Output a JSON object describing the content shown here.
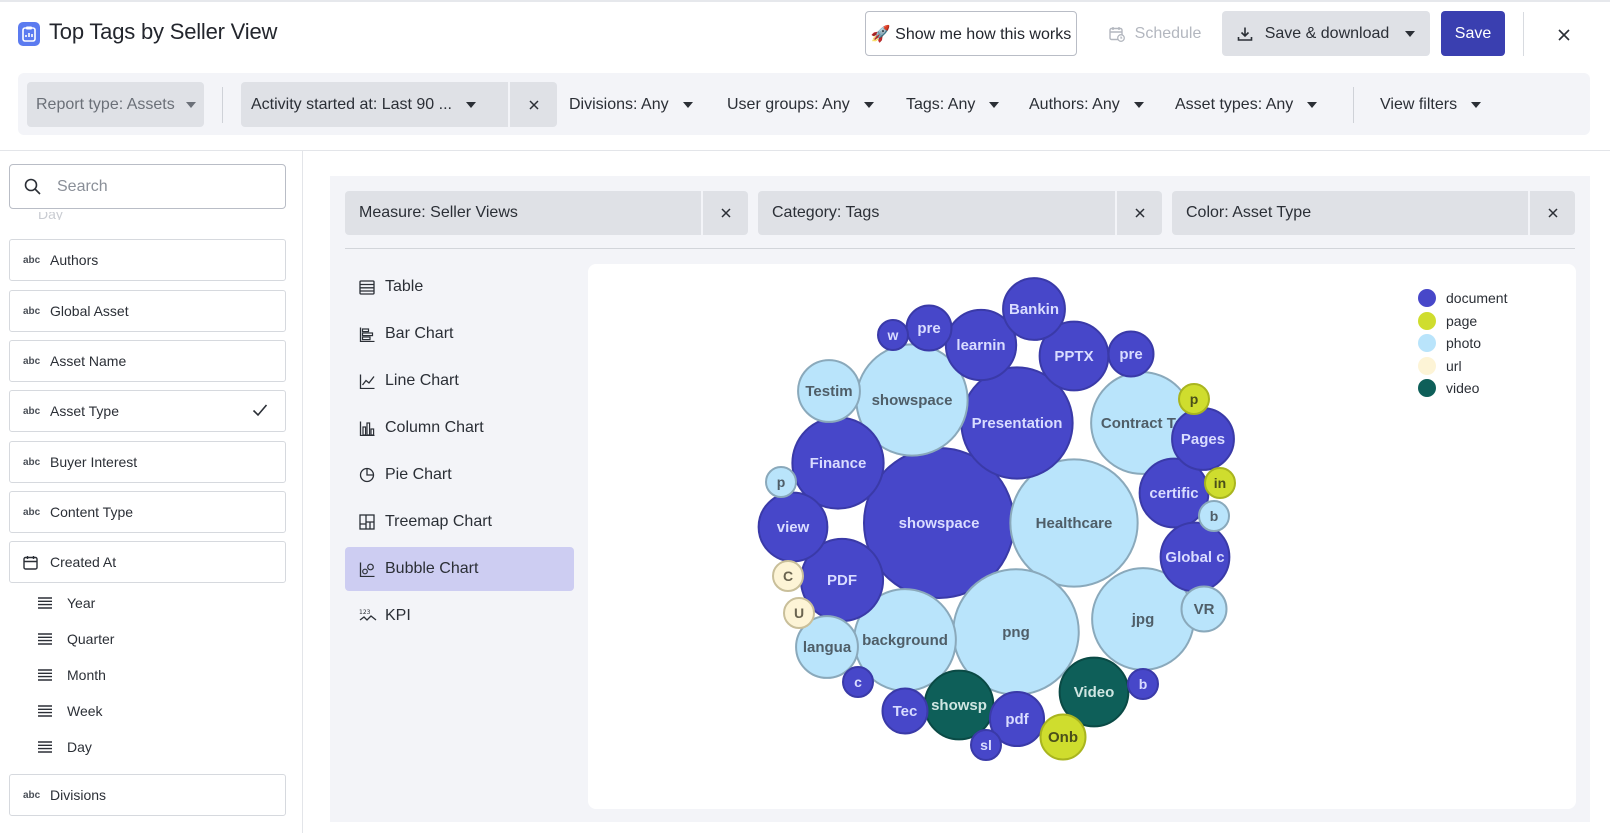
{
  "header": {
    "title": "Top Tags by Seller View",
    "howto_label": "🚀 Show me how this works",
    "schedule_label": "Schedule",
    "save_download_label": "Save & download",
    "save_label": "Save"
  },
  "filters": [
    {
      "label": "Divisions: Any"
    },
    {
      "label": "User groups: Any"
    },
    {
      "label": "Tags: Any"
    },
    {
      "label": "Authors: Any"
    },
    {
      "label": "Asset types: Any"
    }
  ],
  "filter_report": "Report type: Assets",
  "filter_activity": "Activity started at: Last 90 ...",
  "view_filters": "View filters",
  "sidebar": {
    "search_placeholder": "Search",
    "partial_label": "Day",
    "fields": [
      {
        "label": "Authors",
        "type": "abc"
      },
      {
        "label": "Global Asset",
        "type": "abc"
      },
      {
        "label": "Asset Name",
        "type": "abc"
      },
      {
        "label": "Asset Type",
        "type": "abc",
        "selected": true
      },
      {
        "label": "Buyer Interest",
        "type": "abc"
      },
      {
        "label": "Content Type",
        "type": "abc"
      },
      {
        "label": "Created At",
        "type": "date"
      }
    ],
    "subfields": [
      "Year",
      "Quarter",
      "Month",
      "Week",
      "Day"
    ],
    "last_field": "Divisions",
    "abc_badge": "abc"
  },
  "config": {
    "measure": "Measure: Seller Views",
    "category": "Category: Tags",
    "color": "Color: Asset Type"
  },
  "chart_types": [
    {
      "label": "Table",
      "icon": "table-icon"
    },
    {
      "label": "Bar Chart",
      "icon": "bar-chart-icon"
    },
    {
      "label": "Line Chart",
      "icon": "line-chart-icon"
    },
    {
      "label": "Column Chart",
      "icon": "column-chart-icon"
    },
    {
      "label": "Pie Chart",
      "icon": "pie-chart-icon"
    },
    {
      "label": "Treemap Chart",
      "icon": "treemap-chart-icon"
    },
    {
      "label": "Bubble Chart",
      "icon": "bubble-chart-icon",
      "active": true
    },
    {
      "label": "KPI",
      "icon": "kpi-icon"
    }
  ],
  "colors": {
    "accent": "#3a3fb0",
    "document": "#4747c9",
    "page": "#cfdd2e",
    "photo": "#b9e4fb",
    "url": "#fdf4d6",
    "video": "#0e5f59"
  },
  "chart_data": {
    "type": "bubble",
    "legend": [
      "document",
      "page",
      "photo",
      "url",
      "video"
    ],
    "legend_position": "top-right",
    "bubbles": [
      {
        "label": "showspace",
        "type": "document",
        "value": 100
      },
      {
        "label": "Healthcare",
        "type": "photo",
        "value": 72
      },
      {
        "label": "png",
        "type": "photo",
        "value": 70
      },
      {
        "label": "Presentation",
        "type": "document",
        "value": 55
      },
      {
        "label": "showspace",
        "type": "photo",
        "value": 55
      },
      {
        "label": "Contract Te",
        "type": "photo",
        "value": 46
      },
      {
        "label": "background",
        "type": "photo",
        "value": 46
      },
      {
        "label": "jpg",
        "type": "photo",
        "value": 46
      },
      {
        "label": "Finance",
        "type": "document",
        "value": 37
      },
      {
        "label": "PDF",
        "type": "document",
        "value": 30
      },
      {
        "label": "learnin",
        "type": "document",
        "value": 22
      },
      {
        "label": "PPTX",
        "type": "document",
        "value": 21
      },
      {
        "label": "view",
        "type": "document",
        "value": 21
      },
      {
        "label": "Video",
        "type": "video",
        "value": 21
      },
      {
        "label": "showsp",
        "type": "video",
        "value": 21
      },
      {
        "label": "certific",
        "type": "document",
        "value": 21
      },
      {
        "label": "Global c",
        "type": "document",
        "value": 21
      },
      {
        "label": "langua",
        "type": "photo",
        "value": 17
      },
      {
        "label": "Testim",
        "type": "photo",
        "value": 17
      },
      {
        "label": "Bankin",
        "type": "document",
        "value": 17
      },
      {
        "label": "Pages",
        "type": "document",
        "value": 17
      },
      {
        "label": "pdf",
        "type": "document",
        "value": 13
      },
      {
        "label": "Tec",
        "type": "document",
        "value": 9
      },
      {
        "label": "pre",
        "type": "document",
        "value": 9
      },
      {
        "label": "pre",
        "type": "document",
        "value": 9
      },
      {
        "label": "VR",
        "type": "photo",
        "value": 9
      },
      {
        "label": "Onb",
        "type": "page",
        "value": 9
      },
      {
        "label": "w",
        "type": "document",
        "value": 4
      },
      {
        "label": "p",
        "type": "page",
        "value": 4
      },
      {
        "label": "in",
        "type": "page",
        "value": 4
      },
      {
        "label": "b",
        "type": "photo",
        "value": 4
      },
      {
        "label": "p",
        "type": "photo",
        "value": 4
      },
      {
        "label": "C",
        "type": "url",
        "value": 4
      },
      {
        "label": "U",
        "type": "url",
        "value": 4
      },
      {
        "label": "c",
        "type": "document",
        "value": 4
      },
      {
        "label": "b",
        "type": "document",
        "value": 4
      },
      {
        "label": "sl",
        "type": "document",
        "value": 4
      }
    ]
  }
}
